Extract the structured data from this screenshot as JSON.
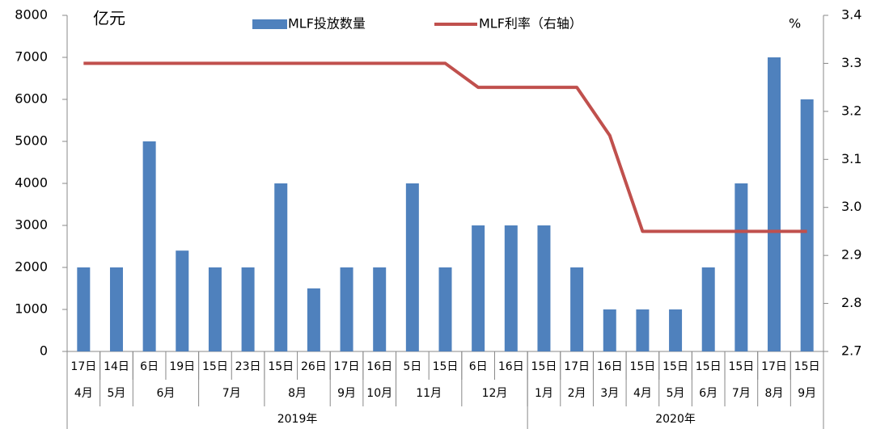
{
  "chart_data": {
    "type": "bar",
    "y_unit": "亿元",
    "y2_unit": "%",
    "categories": [
      "17日",
      "14日",
      "6日",
      "19日",
      "15日",
      "23日",
      "15日",
      "26日",
      "17日",
      "16日",
      "5日",
      "15日",
      "6日",
      "16日",
      "15日",
      "17日",
      "16日",
      "15日",
      "15日",
      "15日",
      "15日",
      "17日",
      "15日"
    ],
    "months": [
      "4月",
      "5月",
      "6月",
      null,
      "7月",
      null,
      "8月",
      null,
      "9月",
      "10月",
      "11月",
      null,
      "12月",
      null,
      "1月",
      "2月",
      "3月",
      "4月",
      "5月",
      "6月",
      "7月",
      "8月",
      "9月"
    ],
    "years": [
      "2019年",
      null,
      null,
      null,
      null,
      null,
      null,
      null,
      null,
      null,
      null,
      null,
      null,
      null,
      "2020年",
      null,
      null,
      null,
      null,
      null,
      null,
      null,
      null
    ],
    "series": [
      {
        "name": "MLF投放数量",
        "color": "#4f81bd",
        "type": "bar",
        "values": [
          2000,
          2000,
          5000,
          2400,
          2000,
          2000,
          4000,
          1500,
          2000,
          2000,
          4000,
          2000,
          3000,
          3000,
          3000,
          2000,
          1000,
          1000,
          1000,
          2000,
          4000,
          7000,
          6000
        ]
      },
      {
        "name": "MLF利率（右轴）",
        "color": "#c0504d",
        "type": "line",
        "axis": "y2",
        "values": [
          3.3,
          3.3,
          3.3,
          3.3,
          3.3,
          3.3,
          3.3,
          3.3,
          3.3,
          3.3,
          3.3,
          3.3,
          3.25,
          3.25,
          3.25,
          3.25,
          3.15,
          2.95,
          2.95,
          2.95,
          2.95,
          2.95,
          2.95
        ]
      }
    ],
    "ylim": [
      0,
      8000
    ],
    "yticks": [
      0,
      1000,
      2000,
      3000,
      4000,
      5000,
      6000,
      7000,
      8000
    ],
    "y2lim": [
      2.7,
      3.4
    ],
    "y2ticks": [
      2.7,
      2.8,
      2.9,
      {
        "value": 3,
        "label": "3.0"
      },
      3.1,
      3.2,
      3.3,
      3.4
    ]
  }
}
